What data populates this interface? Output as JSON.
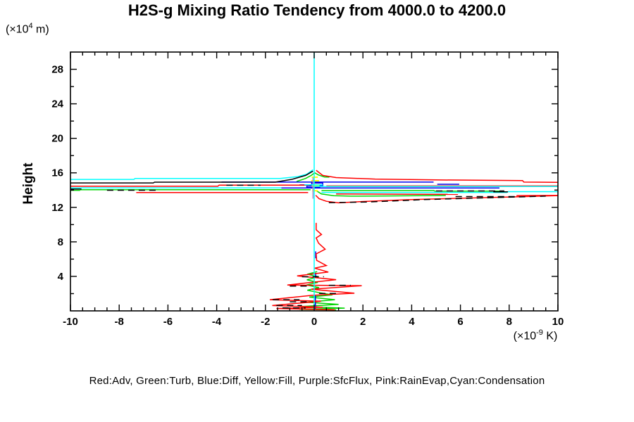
{
  "title": "H2S-g Mixing Ratio Tendency from 4000.0 to 4200.0",
  "y_axis": {
    "title": "Height",
    "unit_prefix": "(×10",
    "unit_sup": "4",
    "unit_suffix": " m)"
  },
  "x_axis": {
    "unit_prefix": "(×10",
    "unit_sup": "-9",
    "unit_suffix": " K)"
  },
  "legend_text": "Red:Adv, Green:Turb, Blue:Diff, Yellow:Fill, Purple:SfcFlux, Pink:RainEvap,Cyan:Condensation",
  "chart_data": {
    "type": "line",
    "title": "H2S-g Mixing Ratio Tendency from 4000.0 to 4200.0",
    "xlabel": "(x10^-9 K)",
    "ylabel": "Height (x10^4 m)",
    "xlim": [
      -10,
      10
    ],
    "ylim": [
      0,
      30
    ],
    "x_major_ticks": [
      -10,
      -8,
      -6,
      -4,
      -2,
      0,
      2,
      4,
      6,
      8,
      10
    ],
    "x_minor_step": 0.5,
    "y_major_ticks": [
      4,
      8,
      12,
      16,
      20,
      24,
      28
    ],
    "y_minor_ticks": [
      2,
      6,
      10,
      14,
      18,
      22,
      26
    ],
    "grid": false,
    "legend_position": "bottom-text",
    "colors": {
      "red": "#ff0000",
      "green": "#00d400",
      "blue": "#0000ee",
      "yellow": "#ffff00",
      "purple": "#b289c8",
      "pink": "#ff9ec9",
      "cyan": "#00ffff",
      "black": "#000000"
    },
    "series": [
      {
        "name": "Turb",
        "color_key": "green",
        "width": 1.5,
        "dash": "",
        "lines": [
          [
            [
              -0.72,
              15.0
            ],
            [
              -0.35,
              15.35
            ],
            [
              -0.12,
              15.7
            ],
            [
              0.02,
              16.0
            ],
            [
              0.18,
              15.75
            ],
            [
              0.42,
              15.52
            ],
            [
              0.62,
              15.5
            ]
          ],
          [
            [
              -9.6,
              14.05
            ],
            [
              -0.15,
              14.05
            ]
          ],
          [
            [
              -10,
              13.97
            ],
            [
              -9.6,
              13.97
            ]
          ],
          [
            [
              0.3,
              13.95
            ],
            [
              4.9,
              13.95
            ],
            [
              4.95,
              13.88
            ],
            [
              7.8,
              13.88
            ]
          ],
          [
            [
              0.1,
              13.9
            ],
            [
              0.3,
              13.55
            ],
            [
              0.8,
              13.35
            ],
            [
              1.5,
              13.3
            ],
            [
              3.0,
              13.32
            ],
            [
              5.4,
              13.38
            ]
          ],
          [
            [
              0.12,
              4.55
            ],
            [
              -0.28,
              4.25
            ],
            [
              0.18,
              3.95
            ],
            [
              -0.3,
              3.6
            ],
            [
              0.15,
              3.3
            ],
            [
              -0.32,
              3.0
            ],
            [
              0.2,
              2.7
            ],
            [
              -0.28,
              2.4
            ],
            [
              0.22,
              2.1
            ],
            [
              0.75,
              1.85
            ],
            [
              -0.2,
              1.6
            ],
            [
              0.85,
              1.3
            ],
            [
              -0.3,
              1.0
            ],
            [
              1.0,
              0.75
            ],
            [
              -0.55,
              0.5
            ],
            [
              1.25,
              0.32
            ],
            [
              -0.6,
              0.18
            ],
            [
              0.9,
              0.1
            ]
          ]
        ]
      },
      {
        "name": "Diff",
        "color_key": "blue",
        "width": 1.5,
        "dash": "",
        "lines": [
          [
            [
              -3.8,
              14.93
            ],
            [
              4.9,
              14.93
            ]
          ],
          [
            [
              5.05,
              14.67
            ],
            [
              5.95,
              14.67
            ]
          ],
          [
            [
              -1.35,
              14.24
            ],
            [
              7.6,
              14.24
            ]
          ],
          [
            [
              -0.6,
              14.6
            ],
            [
              -0.1,
              14.6
            ],
            [
              -0.1,
              14.82
            ],
            [
              0.35,
              14.82
            ],
            [
              0.35,
              14.5
            ],
            [
              -0.3,
              14.5
            ],
            [
              -0.3,
              14.32
            ],
            [
              0.25,
              14.32
            ]
          ],
          [
            [
              0.05,
              1.75
            ],
            [
              0.05,
              0.15
            ]
          ],
          [
            [
              0.06,
              6.9
            ],
            [
              0.06,
              6.1
            ]
          ],
          [
            [
              0.06,
              4.4
            ],
            [
              0.06,
              3.8
            ]
          ]
        ]
      },
      {
        "name": "Adv",
        "color_key": "red",
        "width": 1.5,
        "dash": "",
        "lines": [
          [
            [
              0.08,
              16.3
            ],
            [
              0.35,
              15.7
            ],
            [
              0.9,
              15.45
            ],
            [
              2.5,
              15.28
            ],
            [
              5.0,
              15.18
            ],
            [
              8.55,
              15.1
            ],
            [
              8.6,
              14.93
            ],
            [
              10,
              14.9
            ]
          ],
          [
            [
              -10,
              14.45
            ],
            [
              -3.95,
              14.45
            ],
            [
              -3.9,
              14.58
            ],
            [
              -0.2,
              14.58
            ]
          ],
          [
            [
              -7.3,
              13.72
            ],
            [
              -0.25,
              13.72
            ]
          ],
          [
            [
              0.5,
              14.48
            ],
            [
              10,
              14.48
            ]
          ],
          [
            [
              0.06,
              13.4
            ],
            [
              0.2,
              13.0
            ],
            [
              0.5,
              12.7
            ],
            [
              1.0,
              12.52
            ],
            [
              2.0,
              12.68
            ],
            [
              4.0,
              12.9
            ],
            [
              6.0,
              13.05
            ],
            [
              8.0,
              13.2
            ],
            [
              10,
              13.36
            ]
          ],
          [
            [
              0.9,
              13.55
            ],
            [
              5.9,
              13.5
            ]
          ],
          [
            [
              8.3,
              13.36
            ],
            [
              10,
              13.38
            ]
          ],
          [
            [
              0.08,
              10.2
            ],
            [
              0.08,
              9.4
            ],
            [
              0.3,
              8.85
            ],
            [
              0.08,
              8.45
            ],
            [
              0.18,
              7.85
            ],
            [
              0.45,
              7.15
            ],
            [
              0.08,
              6.6
            ],
            [
              0.1,
              5.85
            ],
            [
              0.5,
              5.25
            ],
            [
              0.02,
              4.95
            ],
            [
              0.58,
              4.5
            ],
            [
              -0.7,
              4.05
            ],
            [
              0.9,
              3.62
            ],
            [
              -1.1,
              3.0
            ],
            [
              1.95,
              2.92
            ],
            [
              -0.12,
              2.5
            ],
            [
              1.65,
              2.05
            ],
            [
              -0.08,
              1.8
            ],
            [
              -1.82,
              1.3
            ],
            [
              0.28,
              1.12
            ],
            [
              -1.72,
              0.62
            ],
            [
              0.35,
              0.42
            ],
            [
              -1.55,
              0.28
            ],
            [
              0.85,
              0.12
            ]
          ]
        ]
      },
      {
        "name": "Fill",
        "color_key": "yellow",
        "width": 2,
        "dash": "",
        "lines": [
          [
            [
              -0.1,
              15.5
            ],
            [
              0.15,
              15.5
            ]
          ],
          [
            [
              -0.12,
              15.08
            ],
            [
              0.2,
              15.08
            ]
          ],
          [
            [
              -0.1,
              14.5
            ],
            [
              0.22,
              14.5
            ]
          ],
          [
            [
              -0.08,
              13.92
            ],
            [
              0.15,
              13.92
            ]
          ]
        ]
      },
      {
        "name": "SfcFlux",
        "color_key": "purple",
        "width": 1.5,
        "dash": "",
        "lines": [
          [
            [
              -0.05,
              13.0
            ],
            [
              -0.05,
              15.45
            ]
          ]
        ]
      },
      {
        "name": "RainEvap",
        "color_key": "pink",
        "width": 1.5,
        "dash": "",
        "lines": []
      },
      {
        "name": "Condensation",
        "color_key": "cyan",
        "width": 1.5,
        "dash": "",
        "lines": [
          [
            [
              0,
              0
            ],
            [
              0,
              30
            ]
          ],
          [
            [
              -10,
              15.24
            ],
            [
              -7.4,
              15.24
            ],
            [
              -7.35,
              15.34
            ],
            [
              -1.4,
              15.34
            ],
            [
              -0.7,
              15.55
            ],
            [
              -0.3,
              15.85
            ],
            [
              -0.05,
              16.35
            ]
          ],
          [
            [
              -10,
              14.26
            ],
            [
              -1.35,
              14.26
            ]
          ],
          [
            [
              0.05,
              14.42
            ],
            [
              10,
              14.42
            ]
          ],
          [
            [
              0.3,
              13.73
            ],
            [
              7.9,
              13.73
            ],
            [
              7.95,
              13.82
            ],
            [
              10,
              13.82
            ]
          ],
          [
            [
              -0.4,
              14.62
            ],
            [
              0.35,
              14.62
            ]
          ]
        ]
      },
      {
        "name": "black-solid",
        "color_key": "black",
        "width": 1.5,
        "dash": "",
        "lines": [
          [
            [
              -10,
              14.83
            ],
            [
              -6.6,
              14.83
            ],
            [
              -6.55,
              14.92
            ],
            [
              -1.6,
              14.92
            ],
            [
              -0.9,
              15.25
            ],
            [
              -0.35,
              15.7
            ],
            [
              -0.05,
              16.2
            ]
          ],
          [
            [
              -10,
              14.12
            ],
            [
              -9.55,
              14.12
            ]
          ],
          [
            [
              7.35,
              13.8
            ],
            [
              7.95,
              13.8
            ]
          ]
        ]
      },
      {
        "name": "black-dashed",
        "color_key": "black",
        "width": 1.5,
        "dash": "9 6",
        "lines": [
          [
            [
              -8.5,
              13.98
            ],
            [
              -6.4,
              13.98
            ]
          ],
          [
            [
              -3.6,
              14.56
            ],
            [
              -2.2,
              14.56
            ]
          ],
          [
            [
              0.6,
              12.55
            ],
            [
              2.2,
              12.62
            ],
            [
              4.5,
              12.9
            ],
            [
              7.0,
              13.1
            ],
            [
              9.5,
              13.3
            ]
          ],
          [
            [
              5.0,
              13.9
            ],
            [
              7.8,
              13.9
            ]
          ],
          [
            [
              5.8,
              13.25
            ],
            [
              8.3,
              13.25
            ]
          ],
          [
            [
              -0.5,
              3.95
            ],
            [
              0.4,
              3.95
            ]
          ],
          [
            [
              0.6,
              2.97
            ],
            [
              1.5,
              2.97
            ]
          ],
          [
            [
              -1.0,
              2.88
            ],
            [
              -0.2,
              2.88
            ]
          ],
          [
            [
              0.2,
              2.02
            ],
            [
              1.0,
              2.02
            ]
          ],
          [
            [
              -1.7,
              1.3
            ],
            [
              -0.6,
              1.3
            ]
          ],
          [
            [
              -1.0,
              1.05
            ],
            [
              -0.2,
              1.05
            ]
          ],
          [
            [
              -1.55,
              0.62
            ],
            [
              -0.5,
              0.62
            ]
          ],
          [
            [
              -1.3,
              0.35
            ],
            [
              -0.35,
              0.35
            ]
          ]
        ]
      }
    ]
  }
}
